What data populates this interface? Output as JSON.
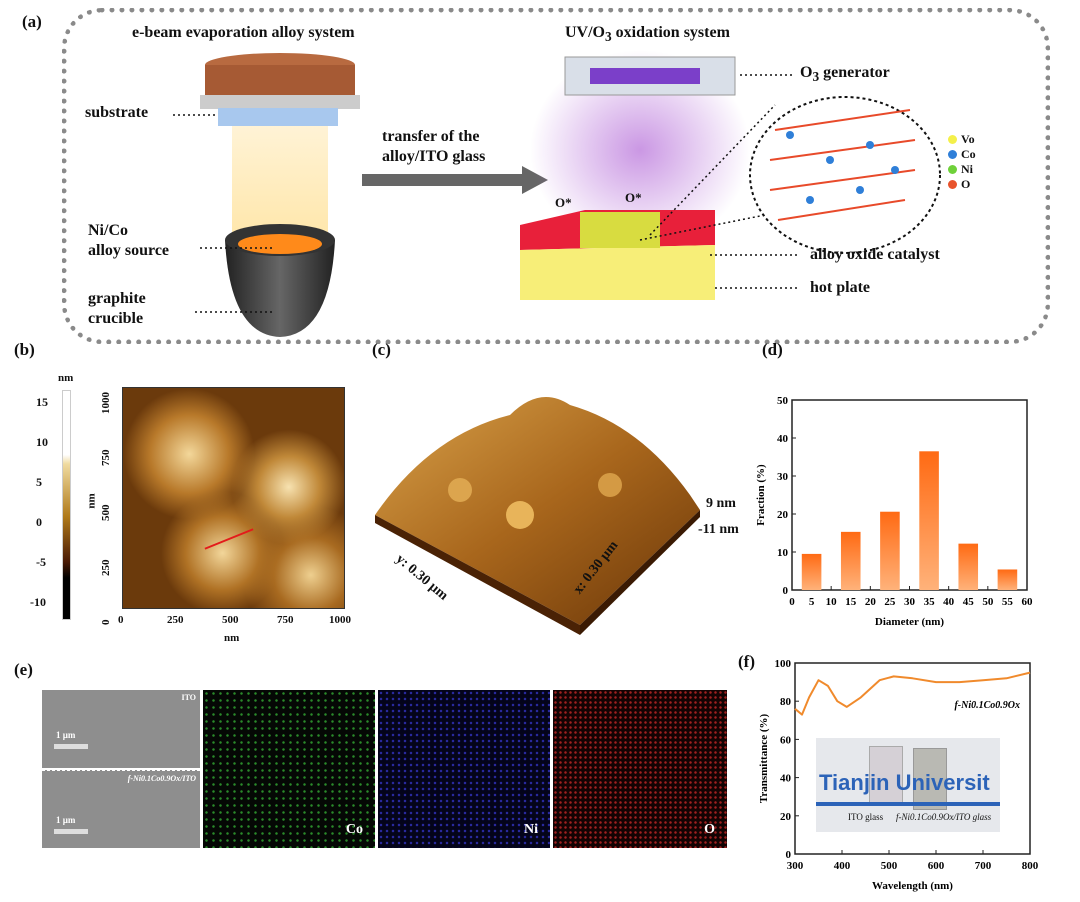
{
  "panel_a": {
    "label": "(a)",
    "left_title": "e-beam evaporation alloy system",
    "right_title": "UV/O",
    "right_title_sub": "3",
    "right_title_end": " oxidation system",
    "substrate": "substrate",
    "source": "Ni/Co",
    "source2": "alloy source",
    "crucible": "graphite",
    "crucible2": "crucible",
    "transfer": "transfer of the",
    "transfer2": "alloy/ITO glass",
    "generator": "O",
    "generator_sub": "3",
    "generator_end": " generator",
    "catalyst": "alloy oxide catalyst",
    "hotplate": "hot plate",
    "ozone": "O*",
    "legend": [
      {
        "label": "Vo",
        "color": "#f4f04a"
      },
      {
        "label": "Co",
        "color": "#2f7fd8"
      },
      {
        "label": "Ni",
        "color": "#6fd13a"
      },
      {
        "label": "O",
        "color": "#e8532c"
      }
    ]
  },
  "panel_b": {
    "label": "(b)",
    "colorbar_unit": "nm",
    "colorbar_ticks": [
      "15",
      "10",
      "5",
      "0",
      "-5",
      "-10"
    ],
    "y_ticks": [
      "1000",
      "750",
      "500",
      "250",
      "0"
    ],
    "x_ticks": [
      "0",
      "250",
      "500",
      "750",
      "1000"
    ],
    "xlabel": "nm",
    "ylabel": "nm"
  },
  "panel_c": {
    "label": "(c)",
    "zmax": "9 nm",
    "zmin": "-11 nm",
    "ylabel": "y: 0.30 µm",
    "xlabel": "x: 0.30 µm"
  },
  "panel_e": {
    "label": "(e)",
    "top_tag": "ITO",
    "bottom_tag": "f-Ni0.1Co0.9Ox/ITO",
    "scale": "1 µm",
    "maps": [
      "Co",
      "Ni",
      "O"
    ]
  },
  "chart_data": [
    {
      "panel": "(d)",
      "type": "bar",
      "xlabel": "Diameter (nm)",
      "ylabel": "Fraction (%)",
      "x": [
        5,
        15,
        25,
        35,
        45,
        55
      ],
      "values": [
        9.5,
        15.3,
        20.6,
        36.5,
        12.2,
        5.4
      ],
      "xlim": [
        0,
        60
      ],
      "ylim": [
        0,
        50
      ],
      "x_ticks": [
        0,
        5,
        10,
        15,
        20,
        25,
        30,
        35,
        40,
        45,
        50,
        55,
        60
      ],
      "y_ticks": [
        0,
        10,
        20,
        30,
        40,
        50
      ],
      "color": "#ff6a13"
    },
    {
      "panel": "(f)",
      "type": "line",
      "xlabel": "Wavelength (nm)",
      "ylabel": "Transmittance (%)",
      "xlim": [
        300,
        800
      ],
      "ylim": [
        0,
        100
      ],
      "x_ticks": [
        300,
        400,
        500,
        600,
        700,
        800
      ],
      "y_ticks": [
        0,
        20,
        40,
        60,
        80,
        100
      ],
      "series": [
        {
          "name": "f-Ni0.1Co0.9Ox",
          "x": [
            300,
            315,
            330,
            350,
            370,
            390,
            410,
            440,
            480,
            510,
            550,
            600,
            650,
            700,
            750,
            800
          ],
          "y": [
            76,
            73,
            82,
            91,
            88,
            80,
            77,
            82,
            91,
            93,
            92,
            90,
            90,
            91,
            92,
            95
          ],
          "color": "#f08a2c"
        }
      ],
      "inset": {
        "text1": "Tianjin Universit",
        "text2": "ITO glass",
        "text3": "f-Ni0.1Co0.9Ox/ITO glass"
      }
    }
  ]
}
